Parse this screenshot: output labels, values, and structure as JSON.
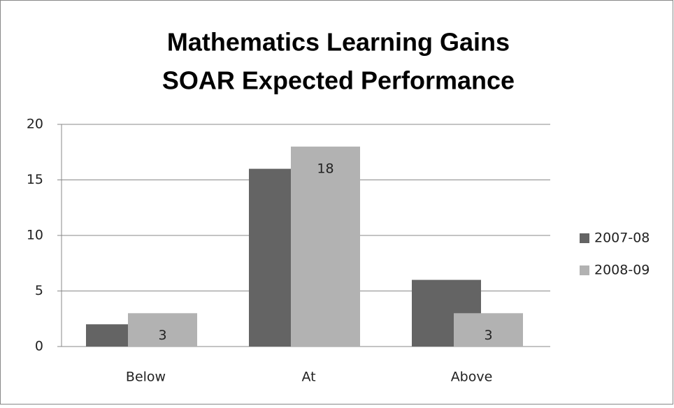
{
  "chart_data": {
    "type": "bar",
    "title": [
      "Mathematics Learning Gains",
      "SOAR Expected Performance"
    ],
    "categories": [
      "Below",
      "At",
      "Above"
    ],
    "series": [
      {
        "name": "2007-08",
        "color": "#646464",
        "values": [
          2,
          16,
          6
        ]
      },
      {
        "name": "2008-09",
        "color": "#b2b2b2",
        "values": [
          3,
          18,
          3
        ],
        "show_labels": true
      }
    ],
    "ylim": [
      0,
      20
    ],
    "yticks": [
      0,
      5,
      10,
      15,
      20
    ],
    "grid": true,
    "legend": "right"
  }
}
